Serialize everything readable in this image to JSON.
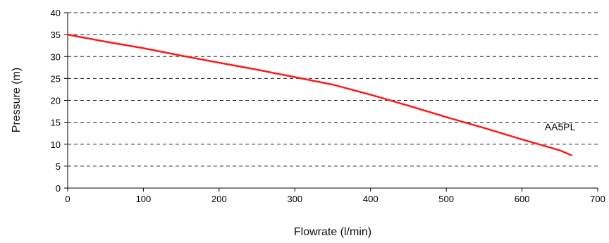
{
  "chart_data": {
    "type": "line",
    "title": "",
    "xlabel": "Flowrate (l/min)",
    "ylabel": "Pressure (m)",
    "xlim": [
      0,
      700
    ],
    "ylim": [
      0,
      40
    ],
    "x_ticks": [
      0,
      100,
      200,
      300,
      400,
      500,
      600,
      700
    ],
    "y_ticks": [
      0,
      5,
      10,
      15,
      20,
      25,
      30,
      35,
      40
    ],
    "grid": "horizontal dashed",
    "legend": "none",
    "series": [
      {
        "color": "#ff1a1a",
        "x": [
          0,
          50,
          100,
          150,
          200,
          250,
          300,
          350,
          400,
          450,
          500,
          550,
          600,
          650,
          665
        ],
        "y": [
          35,
          33.4,
          31.9,
          30.2,
          28.6,
          27.0,
          25.3,
          23.6,
          21.3,
          18.8,
          16.2,
          13.7,
          11.1,
          8.6,
          7.5
        ]
      }
    ],
    "annotations": [
      {
        "text": "AA5PL",
        "x": 630,
        "y": 14.8
      }
    ]
  }
}
